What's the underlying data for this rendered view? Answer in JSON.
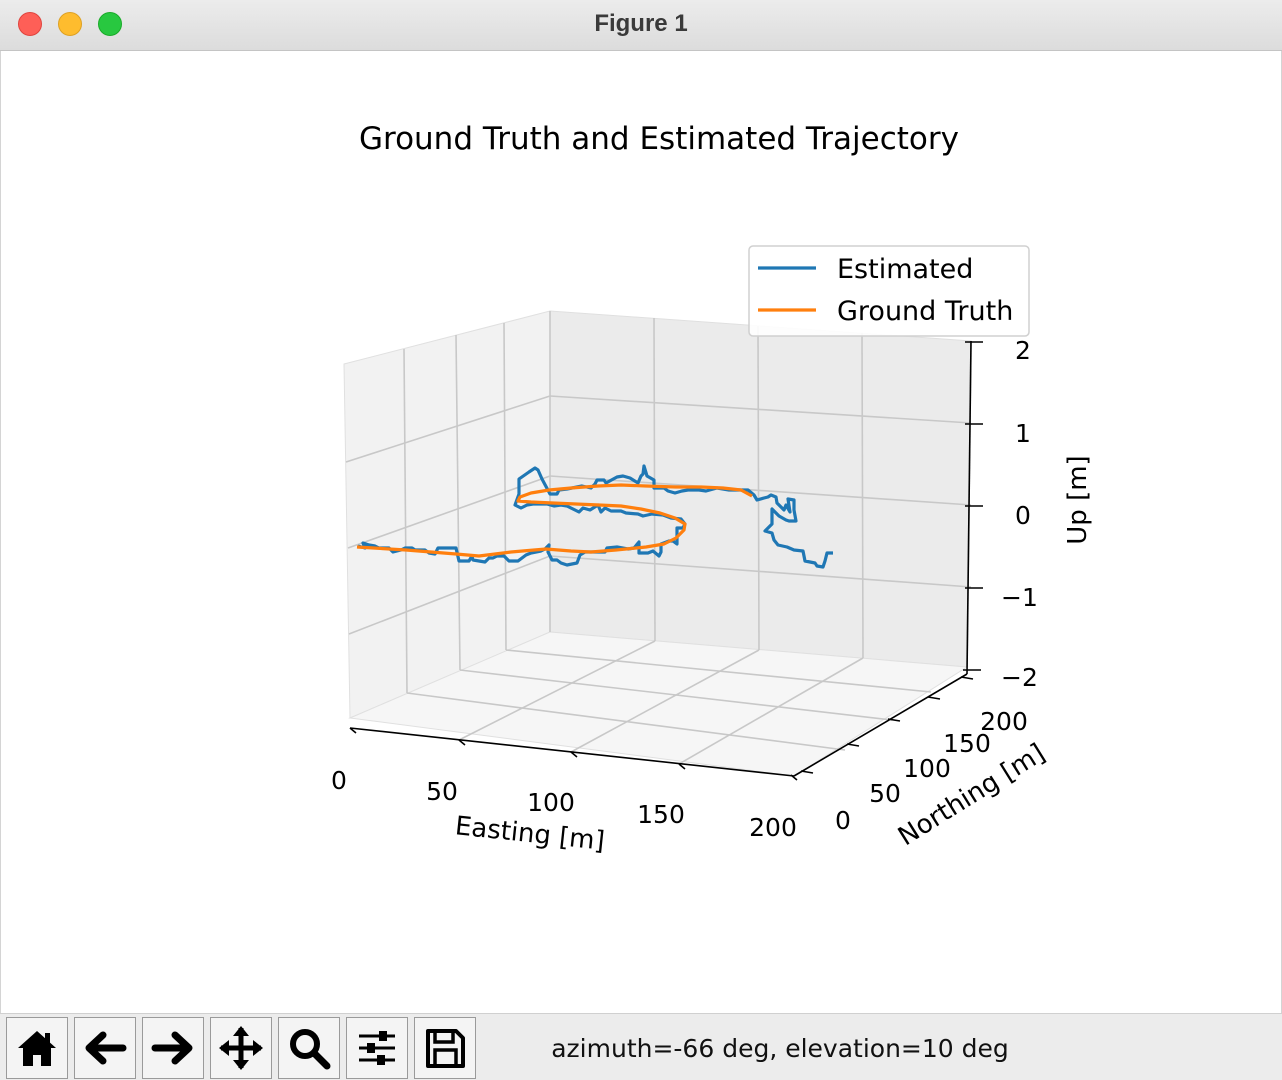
{
  "window": {
    "title": "Figure 1"
  },
  "chart_data": {
    "type": "line",
    "title": "Ground Truth and Estimated Trajectory",
    "xlabel": "Easting [m]",
    "ylabel": "Northing [m]",
    "zlabel": "Up [m]",
    "xlim": [
      0,
      200
    ],
    "ylim": [
      0,
      200
    ],
    "zlim": [
      -2,
      2
    ],
    "xticks": [
      "0",
      "50",
      "100",
      "150",
      "200"
    ],
    "yticks": [
      "0",
      "50",
      "100",
      "150",
      "200"
    ],
    "zticks": [
      "2",
      "1",
      "0",
      "−1",
      "−2"
    ],
    "grid": true,
    "legend": "upper right",
    "series": [
      {
        "name": "Estimated",
        "color": "#1f77b4"
      },
      {
        "name": "Ground Truth",
        "color": "#ff7f0e"
      }
    ]
  },
  "toolbar": {
    "buttons": [
      {
        "icon": "home-icon"
      },
      {
        "icon": "back-arrow-icon"
      },
      {
        "icon": "forward-arrow-icon"
      },
      {
        "icon": "pan-move-icon"
      },
      {
        "icon": "zoom-magnifier-icon"
      },
      {
        "icon": "configure-subplots-icon"
      },
      {
        "icon": "save-floppy-icon"
      }
    ],
    "status": "azimuth=-66 deg, elevation=10 deg"
  }
}
